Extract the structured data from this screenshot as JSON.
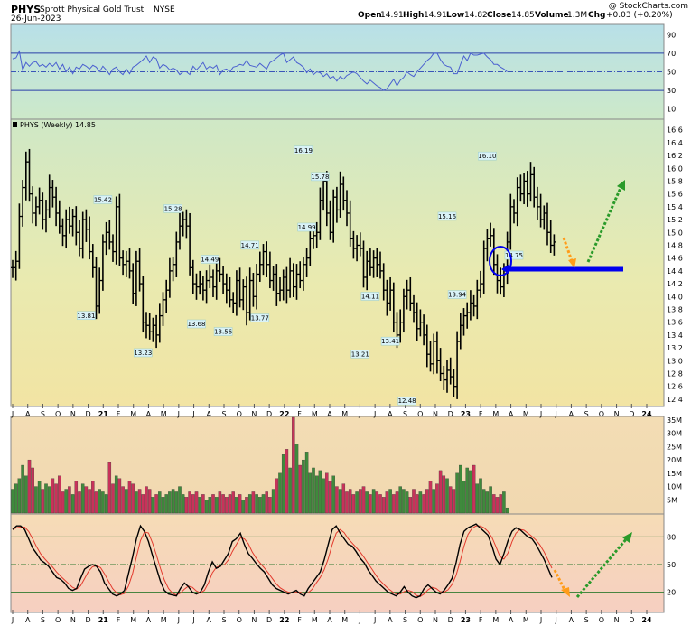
{
  "header": {
    "symbol": "PHYS",
    "name": "Sprott Physical Gold Trust",
    "exchange": "NYSE",
    "date": "26-Jun-2023",
    "copyright": "@ StockCharts.com",
    "open_label": "Open",
    "open": "14.91",
    "high_label": "High",
    "high": "14.91",
    "low_label": "Low",
    "low": "14.82",
    "close_label": "Close",
    "close": "14.85",
    "volume_label": "Volume",
    "volume": "1.3M",
    "chg_label": "Chg",
    "chg": "+0.03 (+0.20%)"
  },
  "price_panel_label": "PHYS (Weekly) 14.85",
  "colors": {
    "up_volume": "#3f8a3c",
    "down_volume": "#c8325a",
    "rsi_line": "#4a5fd0",
    "stoch_k": "#000000",
    "stoch_d": "#e33b2e",
    "support_line": "#0000ee",
    "arrow_down": "#ff9c1a",
    "arrow_up": "#2a9a2a"
  },
  "x_axis_labels": [
    "J",
    "A",
    "S",
    "O",
    "N",
    "D",
    "21",
    "F",
    "M",
    "A",
    "M",
    "J",
    "J",
    "A",
    "S",
    "O",
    "N",
    "D",
    "22",
    "F",
    "M",
    "A",
    "M",
    "J",
    "J",
    "A",
    "S",
    "O",
    "N",
    "D",
    "23",
    "F",
    "M",
    "A",
    "M",
    "J",
    "J",
    "A",
    "S",
    "O",
    "N",
    "D",
    "24"
  ],
  "chart_data": [
    {
      "panel": "rsi",
      "type": "line",
      "ylim": [
        0,
        100
      ],
      "y_ticks": [
        10,
        30,
        50,
        70,
        90
      ],
      "reference_lines": [
        30,
        50,
        70
      ],
      "values": [
        64,
        65,
        72,
        52,
        60,
        56,
        60,
        61,
        56,
        58,
        55,
        59,
        56,
        60,
        53,
        58,
        50,
        55,
        48,
        55,
        53,
        58,
        56,
        53,
        57,
        55,
        50,
        56,
        52,
        47,
        53,
        55,
        50,
        47,
        53,
        48,
        55,
        57,
        60,
        63,
        67,
        60,
        66,
        64,
        54,
        58,
        56,
        52,
        54,
        52,
        47,
        50,
        50,
        47,
        56,
        52,
        56,
        60,
        53,
        56,
        54,
        57,
        47,
        52,
        53,
        50,
        55,
        56,
        58,
        57,
        62,
        57,
        56,
        55,
        59,
        56,
        53,
        60,
        62,
        65,
        68,
        70,
        60,
        63,
        66,
        60,
        58,
        55,
        49,
        53,
        47,
        50,
        49,
        45,
        48,
        43,
        45,
        40,
        45,
        42,
        46,
        48,
        50,
        48,
        44,
        40,
        37,
        41,
        38,
        35,
        33,
        30,
        32,
        37,
        42,
        35,
        41,
        44,
        50,
        47,
        45,
        50,
        54,
        58,
        62,
        65,
        70,
        70,
        63,
        58,
        56,
        55,
        48,
        48,
        58,
        67,
        62,
        70,
        68,
        68,
        69,
        70,
        66,
        63,
        58,
        58,
        55,
        53,
        50
      ]
    },
    {
      "panel": "price",
      "type": "ohlc",
      "interval": "weekly",
      "y_ticks": [
        12.4,
        12.6,
        12.8,
        13.0,
        13.2,
        13.4,
        13.6,
        13.8,
        14.0,
        14.2,
        14.4,
        14.6,
        14.8,
        15.0,
        15.2,
        15.4,
        15.6,
        15.8,
        16.0,
        16.2,
        16.4,
        16.6
      ],
      "ylim": [
        12.3,
        16.75
      ],
      "closes": [
        14.45,
        14.55,
        15.25,
        15.7,
        16.1,
        15.6,
        15.3,
        15.4,
        15.5,
        15.2,
        15.35,
        15.7,
        15.55,
        15.3,
        15.1,
        14.95,
        15.2,
        15.1,
        15.25,
        15.0,
        14.75,
        15.2,
        15.05,
        14.7,
        14.45,
        13.85,
        14.25,
        14.85,
        15.0,
        14.85,
        14.7,
        15.4,
        14.6,
        14.5,
        14.55,
        14.4,
        14.05,
        14.55,
        14.2,
        13.6,
        13.55,
        13.45,
        13.55,
        13.4,
        13.7,
        13.95,
        14.1,
        14.4,
        14.5,
        14.85,
        15.1,
        15.2,
        15.1,
        14.45,
        14.2,
        14.15,
        14.2,
        14.1,
        14.25,
        14.3,
        14.15,
        14.4,
        14.35,
        14.2,
        14.1,
        13.95,
        13.9,
        14.25,
        13.95,
        14.15,
        13.75,
        14.25,
        14.0,
        14.35,
        14.5,
        14.7,
        14.5,
        14.25,
        14.35,
        14.05,
        14.1,
        14.3,
        14.1,
        14.4,
        14.15,
        14.35,
        14.25,
        14.5,
        14.6,
        14.9,
        14.95,
        15.0,
        15.5,
        15.8,
        15.3,
        15.0,
        15.55,
        15.35,
        15.75,
        15.5,
        15.3,
        14.9,
        14.75,
        14.8,
        14.75,
        14.3,
        14.55,
        14.45,
        14.6,
        14.5,
        14.4,
        14.1,
        13.9,
        14.1,
        13.6,
        13.4,
        13.6,
        14.0,
        14.1,
        13.9,
        13.75,
        13.5,
        13.6,
        13.4,
        13.1,
        12.95,
        13.3,
        13.0,
        12.8,
        12.7,
        12.85,
        12.75,
        12.6,
        13.3,
        13.55,
        13.7,
        13.75,
        13.9,
        13.85,
        14.1,
        14.2,
        14.75,
        14.9,
        14.95,
        14.5,
        14.25,
        14.15,
        14.4,
        14.85,
        15.4,
        15.3,
        15.7,
        15.6,
        15.8,
        15.6,
        15.9,
        15.55,
        15.4,
        15.2,
        15.3,
        15.0,
        14.8,
        14.85
      ],
      "labels": [
        {
          "text": "15.42",
          "bar": 27
        },
        {
          "text": "13.81",
          "bar": 22
        },
        {
          "text": "15.28",
          "bar": 48
        },
        {
          "text": "13.23",
          "bar": 39
        },
        {
          "text": "14.49",
          "bar": 59
        },
        {
          "text": "13.68",
          "bar": 55
        },
        {
          "text": "14.71",
          "bar": 71
        },
        {
          "text": "13.56",
          "bar": 63
        },
        {
          "text": "13.77",
          "bar": 74
        },
        {
          "text": "16.19",
          "bar": 87
        },
        {
          "text": "15.78",
          "bar": 92
        },
        {
          "text": "14.99",
          "bar": 88
        },
        {
          "text": "14.11",
          "bar": 107
        },
        {
          "text": "13.21",
          "bar": 104
        },
        {
          "text": "13.41",
          "bar": 113
        },
        {
          "text": "12.48",
          "bar": 118
        },
        {
          "text": "15.16",
          "bar": 130
        },
        {
          "text": "13.94",
          "bar": 133
        },
        {
          "text": "16.10",
          "bar": 142
        },
        {
          "text": "14.75",
          "bar": 150
        }
      ]
    },
    {
      "panel": "volume",
      "type": "bar",
      "y_ticks": [
        "5M",
        "10M",
        "15M",
        "20M",
        "25M",
        "30M",
        "35M"
      ],
      "ylim": [
        0,
        36
      ],
      "values_millions": [
        9,
        11,
        13,
        18,
        14,
        20,
        17,
        10,
        12,
        9,
        11,
        10,
        13,
        11,
        14,
        8,
        9,
        10,
        7,
        12,
        8,
        11,
        10,
        9,
        12,
        8,
        9,
        8,
        7,
        19,
        11,
        14,
        13,
        10,
        9,
        12,
        11,
        8,
        9,
        7,
        10,
        9,
        6,
        7,
        8,
        6,
        7,
        8,
        9,
        8,
        10,
        7,
        6,
        8,
        7,
        8,
        6,
        7,
        5,
        6,
        7,
        6,
        8,
        7,
        6,
        7,
        8,
        6,
        7,
        5,
        6,
        7,
        8,
        7,
        6,
        7,
        8,
        6,
        9,
        13,
        15,
        22,
        24,
        17,
        36,
        26,
        18,
        20,
        23,
        15,
        17,
        14,
        16,
        13,
        15,
        12,
        14,
        10,
        9,
        11,
        8,
        9,
        7,
        8,
        9,
        10,
        8,
        7,
        9,
        8,
        7,
        6,
        8,
        9,
        7,
        8,
        10,
        9,
        8,
        6,
        9,
        7,
        8,
        7,
        9,
        12,
        9,
        11,
        16,
        14,
        13,
        10,
        9,
        15,
        18,
        12,
        17,
        16,
        18,
        11,
        13,
        9,
        8,
        10,
        7,
        6,
        7,
        8,
        2
      ]
    },
    {
      "panel": "stochastic",
      "type": "line",
      "ylim": [
        0,
        100
      ],
      "y_ticks": [
        20,
        50,
        80
      ],
      "reference_lines": [
        20,
        50,
        80
      ],
      "k_values": [
        88,
        92,
        92,
        88,
        78,
        68,
        62,
        55,
        52,
        48,
        42,
        36,
        34,
        30,
        24,
        22,
        24,
        35,
        45,
        48,
        50,
        48,
        42,
        30,
        24,
        18,
        16,
        18,
        22,
        40,
        58,
        78,
        92,
        86,
        75,
        60,
        46,
        32,
        22,
        18,
        17,
        16,
        24,
        30,
        26,
        20,
        18,
        20,
        28,
        42,
        53,
        46,
        48,
        55,
        62,
        75,
        78,
        84,
        72,
        62,
        57,
        51,
        46,
        42,
        35,
        28,
        24,
        22,
        20,
        18,
        20,
        22,
        18,
        16,
        24,
        30,
        36,
        42,
        55,
        72,
        88,
        92,
        84,
        78,
        72,
        70,
        64,
        57,
        52,
        44,
        38,
        32,
        28,
        24,
        20,
        18,
        16,
        20,
        26,
        20,
        16,
        14,
        16,
        24,
        28,
        24,
        20,
        18,
        22,
        28,
        35,
        52,
        72,
        86,
        90,
        92,
        94,
        90,
        86,
        82,
        70,
        56,
        50,
        62,
        76,
        86,
        90,
        88,
        84,
        80,
        78,
        72,
        64,
        56,
        46,
        36
      ]
    }
  ]
}
